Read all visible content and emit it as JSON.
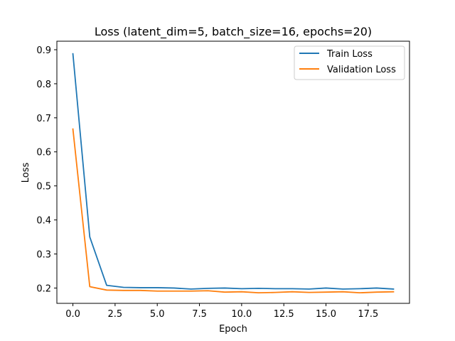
{
  "chart_data": {
    "type": "line",
    "title": "Loss (latent_dim=5, batch_size=16, epochs=20)",
    "xlabel": "Epoch",
    "ylabel": "Loss",
    "xlim": [
      -0.95,
      19.95
    ],
    "ylim": [
      0.155,
      0.925
    ],
    "x_ticks": [
      0.0,
      2.5,
      5.0,
      7.5,
      10.0,
      12.5,
      15.0,
      17.5
    ],
    "x_tick_labels": [
      "0.0",
      "2.5",
      "5.0",
      "7.5",
      "10.0",
      "12.5",
      "15.0",
      "17.5"
    ],
    "y_ticks": [
      0.2,
      0.3,
      0.4,
      0.5,
      0.6,
      0.7,
      0.8,
      0.9
    ],
    "y_tick_labels": [
      "0.2",
      "0.3",
      "0.4",
      "0.5",
      "0.6",
      "0.7",
      "0.8",
      "0.9"
    ],
    "grid": false,
    "legend_position": "top-right",
    "x": [
      0,
      1,
      2,
      3,
      4,
      5,
      6,
      7,
      8,
      9,
      10,
      11,
      12,
      13,
      14,
      15,
      16,
      17,
      18,
      19
    ],
    "series": [
      {
        "name": "Train Loss",
        "color": "#1f77b4",
        "values": [
          0.888,
          0.35,
          0.208,
          0.202,
          0.201,
          0.201,
          0.2,
          0.197,
          0.199,
          0.2,
          0.198,
          0.199,
          0.198,
          0.198,
          0.197,
          0.2,
          0.197,
          0.198,
          0.2,
          0.197
        ]
      },
      {
        "name": "Validation Loss",
        "color": "#ff7f0e",
        "values": [
          0.667,
          0.204,
          0.194,
          0.193,
          0.193,
          0.191,
          0.191,
          0.191,
          0.192,
          0.188,
          0.189,
          0.186,
          0.187,
          0.189,
          0.187,
          0.188,
          0.189,
          0.186,
          0.188,
          0.189
        ]
      }
    ]
  }
}
